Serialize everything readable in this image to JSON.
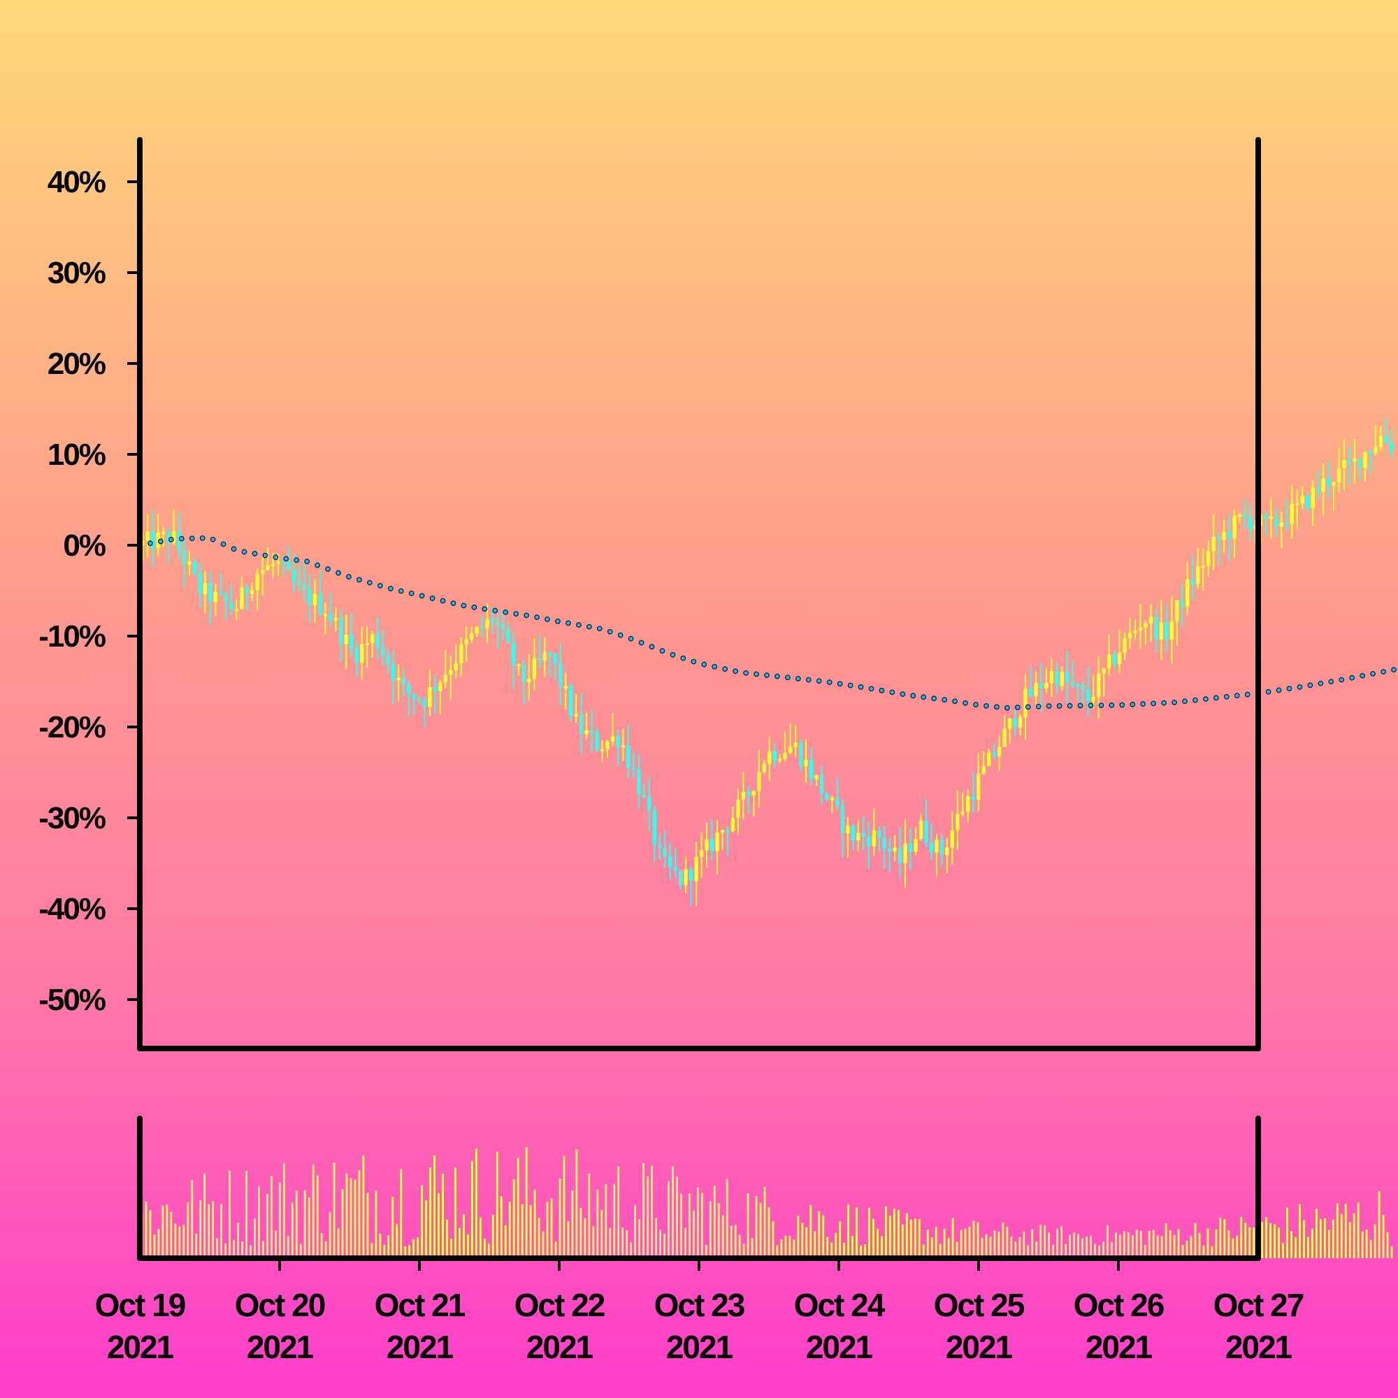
{
  "chart_data": [
    {
      "type": "candlestick",
      "title": "",
      "ylabel": "",
      "xlabel": "",
      "ylim": [
        -56,
        45
      ],
      "yticks": [
        "40%",
        "30%",
        "20%",
        "10%",
        "0%",
        "-10%",
        "-20%",
        "-30%",
        "-40%",
        "-50%"
      ],
      "ytick_values": [
        40,
        30,
        20,
        10,
        0,
        -10,
        -20,
        -30,
        -40,
        -50
      ],
      "xlim": [
        "Oct 19 2021",
        "Oct 27 2021"
      ],
      "colors": {
        "up": "#ffff33",
        "down": "#33ffee",
        "moving_average": "#29b6f6"
      },
      "close_path": [
        [
          0,
          0
        ],
        [
          0.25,
          1
        ],
        [
          0.45,
          -5
        ],
        [
          0.7,
          -7
        ],
        [
          0.85,
          -3
        ],
        [
          1.0,
          -2
        ],
        [
          1.15,
          -5
        ],
        [
          1.35,
          -7
        ],
        [
          1.55,
          -12
        ],
        [
          1.7,
          -10
        ],
        [
          1.9,
          -16
        ],
        [
          2.05,
          -17
        ],
        [
          2.25,
          -13
        ],
        [
          2.4,
          -10
        ],
        [
          2.55,
          -8
        ],
        [
          2.75,
          -15
        ],
        [
          2.95,
          -12
        ],
        [
          3.15,
          -20
        ],
        [
          3.3,
          -22
        ],
        [
          3.45,
          -21
        ],
        [
          3.6,
          -27
        ],
        [
          3.75,
          -35
        ],
        [
          3.9,
          -37
        ],
        [
          4.05,
          -34
        ],
        [
          4.2,
          -31
        ],
        [
          4.35,
          -28
        ],
        [
          4.5,
          -23
        ],
        [
          4.7,
          -22
        ],
        [
          4.9,
          -27
        ],
        [
          5.1,
          -32
        ],
        [
          5.3,
          -32
        ],
        [
          5.45,
          -35
        ],
        [
          5.6,
          -31
        ],
        [
          5.75,
          -34
        ],
        [
          5.9,
          -29
        ],
        [
          6.05,
          -25
        ],
        [
          6.2,
          -21
        ],
        [
          6.35,
          -17
        ],
        [
          6.55,
          -14
        ],
        [
          6.8,
          -17
        ],
        [
          7.0,
          -12
        ],
        [
          7.2,
          -8
        ],
        [
          7.35,
          -10
        ],
        [
          7.5,
          -5
        ],
        [
          7.7,
          0
        ],
        [
          7.9,
          3
        ],
        [
          8.1,
          2
        ],
        [
          8.3,
          4
        ],
        [
          8.5,
          7
        ],
        [
          8.7,
          9
        ],
        [
          8.9,
          12
        ],
        [
          8.97,
          11
        ]
      ],
      "moving_average": [
        [
          0,
          0
        ],
        [
          0.25,
          0.7
        ],
        [
          0.5,
          0.8
        ],
        [
          0.7,
          -0.6
        ],
        [
          1.0,
          -1.4
        ],
        [
          1.2,
          -1.8
        ],
        [
          1.5,
          -3.5
        ],
        [
          1.8,
          -4.8
        ],
        [
          2.0,
          -5.5
        ],
        [
          2.3,
          -6.6
        ],
        [
          2.5,
          -7.1
        ],
        [
          2.8,
          -7.8
        ],
        [
          3.0,
          -8.4
        ],
        [
          3.3,
          -9.2
        ],
        [
          3.5,
          -10.2
        ],
        [
          3.8,
          -12
        ],
        [
          4.0,
          -13
        ],
        [
          4.3,
          -14
        ],
        [
          4.6,
          -14.5
        ],
        [
          4.9,
          -15
        ],
        [
          5.2,
          -15.7
        ],
        [
          5.5,
          -16.5
        ],
        [
          5.8,
          -17.1
        ],
        [
          6.0,
          -17.6
        ],
        [
          6.2,
          -17.9
        ],
        [
          6.5,
          -17.7
        ],
        [
          7.0,
          -17.6
        ],
        [
          7.4,
          -17.3
        ],
        [
          7.7,
          -16.8
        ],
        [
          8.0,
          -16.3
        ],
        [
          8.3,
          -15.6
        ],
        [
          8.6,
          -14.8
        ],
        [
          8.97,
          -13.7
        ]
      ]
    },
    {
      "type": "bar",
      "title": "",
      "ylabel": "",
      "x_labels": [
        {
          "line1": "Oct 19",
          "line2": "2021"
        },
        {
          "line1": "Oct 20",
          "line2": "2021"
        },
        {
          "line1": "Oct 21",
          "line2": "2021"
        },
        {
          "line1": "Oct 22",
          "line2": "2021"
        },
        {
          "line1": "Oct 23",
          "line2": "2021"
        },
        {
          "line1": "Oct 24",
          "line2": "2021"
        },
        {
          "line1": "Oct 25",
          "line2": "2021"
        },
        {
          "line1": "Oct 26",
          "line2": "2021"
        },
        {
          "line1": "Oct 27",
          "line2": "2021"
        }
      ],
      "bar_color": "#ffff55",
      "ylim": [
        0,
        1
      ]
    }
  ]
}
